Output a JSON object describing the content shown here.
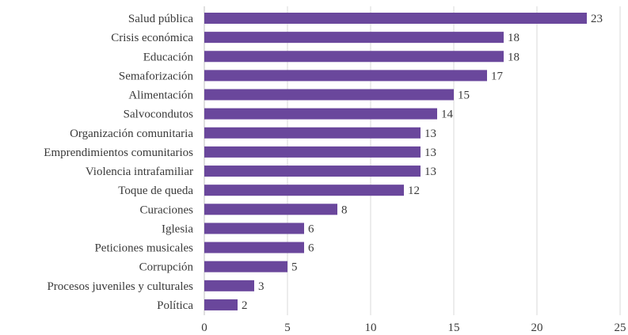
{
  "chart_data": {
    "type": "bar",
    "orientation": "horizontal",
    "categories": [
      "Salud pública",
      "Crisis económica",
      "Educación",
      "Semaforización",
      "Alimentación",
      "Salvocondutos",
      "Organización comunitaria",
      "Emprendimientos comunitarios",
      "Violencia intrafamiliar",
      "Toque de queda",
      "Curaciones",
      "Iglesia",
      "Peticiones musicales",
      "Corrupción",
      "Procesos juveniles y culturales",
      "Política"
    ],
    "values": [
      23,
      18,
      18,
      17,
      15,
      14,
      13,
      13,
      13,
      12,
      8,
      6,
      6,
      5,
      3,
      2
    ],
    "title": "",
    "xlabel": "",
    "ylabel": "",
    "xlim": [
      0,
      25
    ],
    "xticks": [
      "0",
      "5",
      "10",
      "15",
      "20",
      "25"
    ],
    "grid": "vertical",
    "data_labels": true,
    "bar_color": "#6a479c"
  }
}
